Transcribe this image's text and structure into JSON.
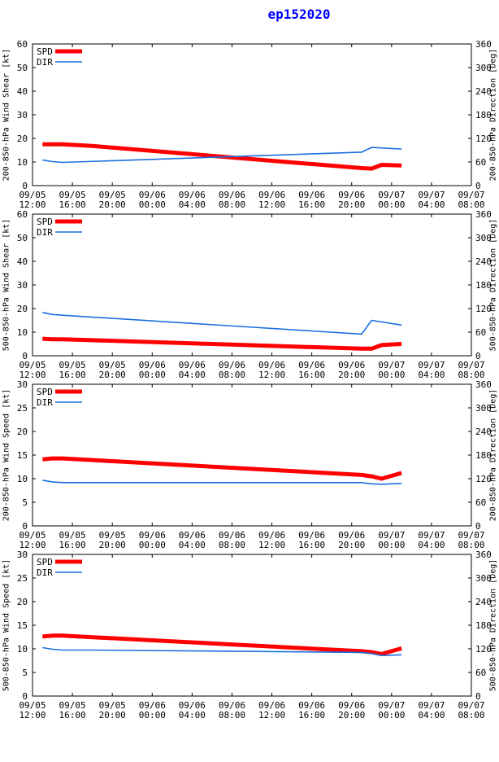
{
  "title": "ep152020",
  "colors": {
    "spd": "#ff0000",
    "dir": "#1a6fe0",
    "title": "#0000ff",
    "axis": "#000000"
  },
  "time_axis": {
    "tick_dates": [
      "09/05",
      "09/05",
      "09/05",
      "09/06",
      "09/06",
      "09/06",
      "09/06",
      "09/06",
      "09/06",
      "09/07",
      "09/07",
      "09/07"
    ],
    "tick_times": [
      "12:00",
      "16:00",
      "20:00",
      "00:00",
      "04:00",
      "08:00",
      "12:00",
      "16:00",
      "20:00",
      "00:00",
      "04:00",
      "08:00"
    ]
  },
  "chart_data": [
    {
      "type": "line",
      "title": "",
      "ylabel": "200-850-hPa Wind Shear [kt]",
      "y2label": "200-850-hPa Direction [Deg]",
      "ylim": [
        0,
        60
      ],
      "yticks": [
        0,
        10,
        20,
        30,
        40,
        50,
        60
      ],
      "y2lim": [
        0,
        360
      ],
      "y2ticks": [
        0,
        60,
        120,
        180,
        240,
        300,
        360
      ],
      "xlim": [
        0,
        44
      ],
      "legend": [
        "SPD",
        "DIR"
      ],
      "legend_position": "top-left",
      "series": [
        {
          "name": "SPD",
          "axis": "left",
          "x": [
            1,
            3,
            6,
            33,
            34,
            35,
            37
          ],
          "values": [
            17.5,
            17.5,
            16.8,
            7.4,
            7.2,
            8.8,
            8.5
          ]
        },
        {
          "name": "DIR",
          "axis": "right",
          "x": [
            1,
            2,
            3,
            33,
            34,
            37
          ],
          "values": [
            65,
            61,
            59,
            85,
            97,
            93
          ]
        }
      ]
    },
    {
      "type": "line",
      "title": "",
      "ylabel": "500-850-hPa Wind Shear [kt]",
      "y2label": "500-850-hPa Direction [Deg]",
      "ylim": [
        0,
        60
      ],
      "yticks": [
        0,
        10,
        20,
        30,
        40,
        50,
        60
      ],
      "y2lim": [
        0,
        360
      ],
      "y2ticks": [
        0,
        60,
        120,
        180,
        240,
        300,
        360
      ],
      "xlim": [
        0,
        44
      ],
      "legend": [
        "SPD",
        "DIR"
      ],
      "legend_position": "top-left",
      "series": [
        {
          "name": "SPD",
          "axis": "left",
          "x": [
            1,
            2,
            3,
            33,
            34,
            35,
            36,
            37
          ],
          "values": [
            7.2,
            7.0,
            7.0,
            3.0,
            3.0,
            4.5,
            4.8,
            5.0
          ]
        },
        {
          "name": "DIR",
          "axis": "right",
          "x": [
            1,
            2,
            3,
            33,
            34,
            37
          ],
          "values": [
            110,
            105,
            103,
            55,
            90,
            78
          ]
        }
      ]
    },
    {
      "type": "line",
      "title": "",
      "ylabel": "200-850-hPa Wind Speed [kt]",
      "y2label": "200-850-hPa Direction [Deg]",
      "ylim": [
        0,
        30
      ],
      "yticks": [
        0,
        5,
        10,
        15,
        20,
        25,
        30
      ],
      "y2lim": [
        0,
        360
      ],
      "y2ticks": [
        0,
        60,
        120,
        180,
        240,
        300,
        360
      ],
      "xlim": [
        0,
        44
      ],
      "legend": [
        "SPD",
        "DIR"
      ],
      "legend_position": "top-left",
      "series": [
        {
          "name": "SPD",
          "axis": "left",
          "x": [
            1,
            2,
            3,
            33,
            34,
            35,
            37
          ],
          "values": [
            14.1,
            14.3,
            14.3,
            10.8,
            10.5,
            10.0,
            11.2
          ]
        },
        {
          "name": "DIR",
          "axis": "right",
          "x": [
            1,
            2,
            3,
            33,
            34,
            35,
            37
          ],
          "values": [
            116,
            112,
            110,
            110,
            107,
            106,
            108
          ]
        }
      ]
    },
    {
      "type": "line",
      "title": "",
      "ylabel": "500-850-hPa Wind Speed [kt]",
      "y2label": "500-850-hPa Direction [Deg]",
      "ylim": [
        0,
        30
      ],
      "yticks": [
        0,
        5,
        10,
        15,
        20,
        25,
        30
      ],
      "y2lim": [
        0,
        360
      ],
      "y2ticks": [
        0,
        60,
        120,
        180,
        240,
        300,
        360
      ],
      "xlim": [
        0,
        44
      ],
      "legend": [
        "SPD",
        "DIR"
      ],
      "legend_position": "top-left",
      "series": [
        {
          "name": "SPD",
          "axis": "left",
          "x": [
            1,
            2,
            3,
            33,
            34,
            35,
            37
          ],
          "values": [
            12.6,
            12.8,
            12.8,
            9.5,
            9.3,
            8.9,
            10.1
          ]
        },
        {
          "name": "DIR",
          "axis": "right",
          "x": [
            1,
            2,
            3,
            6,
            33,
            34,
            35,
            37
          ],
          "values": [
            123,
            119,
            117,
            117,
            111,
            108,
            103,
            105
          ]
        }
      ]
    }
  ]
}
